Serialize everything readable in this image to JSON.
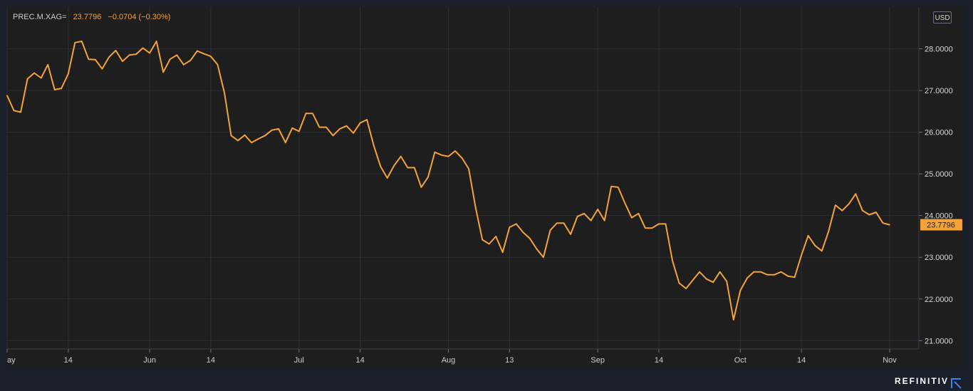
{
  "header": {
    "symbol": "PREC.M.XAG=",
    "last": "23.7796",
    "change": "−0.0704 (−0.30%)"
  },
  "currency": "USD",
  "brand": "REFINITIV",
  "colors": {
    "line": "#f4a23a",
    "background": "#1b1f2a",
    "plot_background": "#1e1e1e",
    "grid": "#2c2f36",
    "last_label_bg": "#f4a23a"
  },
  "chart_data": {
    "type": "line",
    "title": "",
    "xlabel": "",
    "ylabel": "",
    "ylim": [
      20.8,
      29.0
    ],
    "grid": true,
    "y_ticks": [
      "21.0000",
      "22.0000",
      "23.0000",
      "24.0000",
      "25.0000",
      "26.0000",
      "27.0000",
      "28.0000"
    ],
    "y_tick_values": [
      21,
      22,
      23,
      24,
      25,
      26,
      27,
      28
    ],
    "x_ticks": [
      "ay",
      "14",
      "Jun",
      "14",
      "Jul",
      "14",
      "Aug",
      "13",
      "Sep",
      "14",
      "Oct",
      "14",
      "Nov"
    ],
    "x_tick_index": [
      0,
      9,
      21,
      30,
      43,
      52,
      65,
      74,
      87,
      96,
      108,
      117,
      130
    ],
    "last_value_label": "23.7796",
    "series": [
      {
        "values": [
          26.88,
          26.52,
          26.48,
          27.28,
          27.42,
          27.3,
          27.62,
          27.02,
          27.05,
          27.4,
          28.15,
          28.18,
          27.75,
          27.74,
          27.52,
          27.8,
          27.96,
          27.7,
          27.85,
          27.87,
          28.02,
          27.9,
          28.18,
          27.44,
          27.75,
          27.85,
          27.62,
          27.72,
          27.95,
          27.88,
          27.82,
          27.62,
          26.95,
          25.92,
          25.8,
          25.93,
          25.75,
          25.84,
          25.92,
          26.05,
          26.08,
          25.75,
          26.1,
          26.02,
          26.45,
          26.45,
          26.12,
          26.12,
          25.92,
          26.08,
          26.15,
          25.98,
          26.22,
          26.3,
          25.68,
          25.18,
          24.9,
          25.2,
          25.42,
          25.15,
          25.15,
          24.68,
          24.92,
          25.52,
          25.45,
          25.42,
          25.55,
          25.38,
          25.12,
          24.2,
          23.42,
          23.32,
          23.5,
          23.12,
          23.72,
          23.8,
          23.6,
          23.45,
          23.2,
          23.0,
          23.65,
          23.82,
          23.82,
          23.55,
          23.98,
          24.05,
          23.88,
          24.15,
          23.88,
          24.7,
          24.68,
          24.3,
          23.95,
          24.05,
          23.7,
          23.7,
          23.8,
          23.8,
          22.92,
          22.38,
          22.25,
          22.45,
          22.65,
          22.48,
          22.4,
          22.65,
          22.42,
          21.5,
          22.2,
          22.5,
          22.65,
          22.65,
          22.58,
          22.58,
          22.65,
          22.55,
          22.52,
          23.05,
          23.52,
          23.28,
          23.15,
          23.62,
          24.25,
          24.12,
          24.28,
          24.52,
          24.12,
          24.02,
          24.08,
          23.82,
          23.78
        ]
      }
    ]
  }
}
